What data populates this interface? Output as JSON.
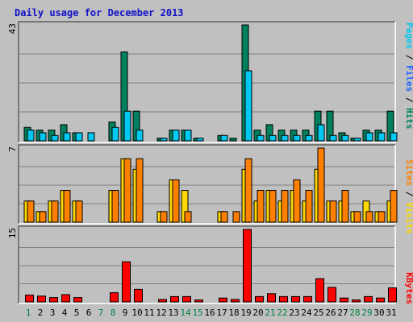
{
  "colors": {
    "background": "#c0c0c0",
    "panel": "#c0c0c0",
    "grid": "#808080",
    "pages": "#00805c",
    "files": "#00c8f0",
    "hits": "#00805c",
    "visits": "#ffd800",
    "sites": "#ff8000",
    "kbytes": "#ff0000",
    "weekday_label": "#000000",
    "weekend_label": "#008040",
    "title": "#1010c8"
  },
  "chart_data": {
    "type": "bar",
    "title": "Daily usage for December 2013",
    "categories": [
      "1",
      "2",
      "3",
      "4",
      "5",
      "6",
      "7",
      "8",
      "9",
      "10",
      "11",
      "12",
      "13",
      "14",
      "15",
      "16",
      "17",
      "18",
      "19",
      "20",
      "21",
      "22",
      "23",
      "24",
      "25",
      "26",
      "27",
      "28",
      "29",
      "30",
      "31"
    ],
    "weekend_days": [
      "1",
      "7",
      "8",
      "14",
      "15",
      "21",
      "22",
      "28",
      "29"
    ],
    "panels": [
      {
        "name": "hits-files-pages",
        "ymax_label": "43",
        "ylim": [
          0,
          43
        ],
        "legend": [
          {
            "text": "Pages",
            "color": "#00c8f0"
          },
          {
            "text": " / ",
            "color": "#000000"
          },
          {
            "text": "Files",
            "color": "#1e64ff"
          },
          {
            "text": " / ",
            "color": "#000000"
          },
          {
            "text": "Hits",
            "color": "#00805c"
          }
        ],
        "series": [
          {
            "key": "hits",
            "color": "#00805c",
            "values": [
              5,
              4,
              4,
              6,
              3,
              0,
              0,
              7,
              33,
              11,
              0,
              1,
              4,
              4,
              1,
              0,
              2,
              1,
              43,
              4,
              6,
              4,
              4,
              4,
              11,
              11,
              3,
              1,
              4,
              4,
              11
            ]
          },
          {
            "key": "files",
            "color": "#00c8f0",
            "values": [
              4,
              3,
              2,
              3,
              3,
              3,
              0,
              5,
              11,
              4,
              0,
              1,
              4,
              4,
              1,
              0,
              2,
              0,
              26,
              2,
              2,
              2,
              2,
              2,
              6,
              2,
              2,
              1,
              3,
              3,
              3
            ]
          }
        ]
      },
      {
        "name": "visits-sites",
        "ymax_label": "7",
        "ylim": [
          0,
          7
        ],
        "legend": [
          {
            "text": "Sites",
            "color": "#ff8000"
          },
          {
            "text": " / ",
            "color": "#000000"
          },
          {
            "text": "Visits",
            "color": "#ffd800"
          }
        ],
        "series": [
          {
            "key": "visits",
            "color": "#ffd800",
            "values": [
              2,
              1,
              2,
              3,
              2,
              0,
              0,
              3,
              6,
              5,
              0,
              1,
              4,
              3,
              0,
              0,
              1,
              0,
              5,
              2,
              3,
              2,
              3,
              2,
              5,
              2,
              2,
              1,
              2,
              1,
              2
            ]
          },
          {
            "key": "sites",
            "color": "#ff8000",
            "values": [
              2,
              1,
              2,
              3,
              2,
              0,
              0,
              3,
              6,
              6,
              0,
              1,
              4,
              1,
              0,
              0,
              1,
              1,
              6,
              3,
              3,
              3,
              4,
              3,
              7,
              2,
              3,
              1,
              1,
              1,
              3
            ]
          }
        ]
      },
      {
        "name": "kbytes",
        "ymax_label": "15",
        "ylim": [
          0,
          15
        ],
        "legend": [
          {
            "text": "KBytes",
            "color": "#ff0000"
          }
        ],
        "series": [
          {
            "key": "kbytes",
            "color": "#ff0000",
            "values": [
              1.4,
              1.2,
              0.9,
              1.5,
              0.9,
              0,
              0,
              1.9,
              8.3,
              2.6,
              0,
              0.5,
              1.1,
              1.1,
              0.4,
              0,
              0.8,
              0.5,
              15.2,
              1.1,
              1.7,
              1.1,
              1.1,
              1.1,
              4.8,
              3.0,
              0.8,
              0.4,
              1.1,
              0.8,
              2.9
            ]
          }
        ]
      }
    ]
  }
}
